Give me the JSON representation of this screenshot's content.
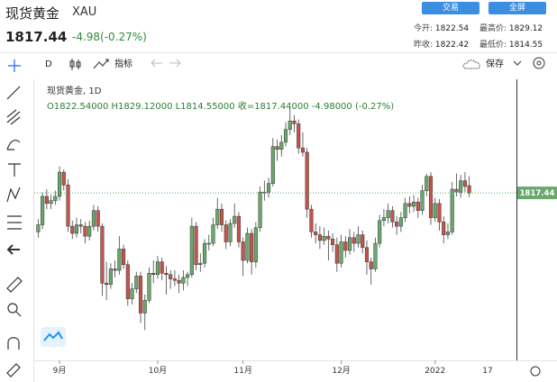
{
  "header": {
    "title": "现货黄金",
    "symbol": "XAU",
    "price": "1817.44",
    "change": "-4.98(-0.27%)",
    "buttons": [
      "交易",
      "全屏"
    ],
    "stats": [
      {
        "label": "今开:",
        "value": "1822.54"
      },
      {
        "label": "最高价:",
        "value": "1829.12"
      },
      {
        "label": "昨收:",
        "value": "1822.42"
      },
      {
        "label": "最低价:",
        "value": "1814.55"
      }
    ]
  },
  "toolbar": {
    "interval": "D",
    "indicators": "指标",
    "save": "保存"
  },
  "chart_data": {
    "type": "candlestick",
    "legend_title": "现货黄金, 1D",
    "legend_ohlc": "O1822.54000  H1829.12000  L1814.55000  收=1817.44000  -4.98000 (-0.27%)",
    "up_color": "#6aa86e",
    "down_color": "#c4554d",
    "last_price": 1817.44,
    "last_price_label": "1817.44",
    "ylim": [
      1701,
      1896
    ],
    "future_label": "17",
    "categories": [
      null,
      null,
      null,
      null,
      null,
      "9月",
      null,
      null,
      null,
      null,
      null,
      null,
      null,
      null,
      null,
      null,
      null,
      null,
      null,
      null,
      null,
      null,
      null,
      null,
      null,
      null,
      null,
      null,
      "10月",
      null,
      null,
      null,
      null,
      null,
      null,
      null,
      null,
      null,
      null,
      null,
      null,
      null,
      null,
      null,
      null,
      null,
      null,
      null,
      "11月",
      null,
      null,
      null,
      null,
      null,
      null,
      null,
      null,
      null,
      null,
      null,
      null,
      null,
      null,
      null,
      null,
      null,
      null,
      null,
      null,
      null,
      null,
      "12月",
      null,
      null,
      null,
      null,
      null,
      null,
      null,
      null,
      null,
      null,
      null,
      null,
      null,
      null,
      null,
      null,
      null,
      null,
      null,
      null,
      null,
      "2022",
      null,
      null,
      null,
      null,
      null,
      null,
      null,
      null
    ],
    "ohlc": [
      [
        1790,
        1799,
        1786,
        1795
      ],
      [
        1795,
        1818,
        1792,
        1815
      ],
      [
        1815,
        1820,
        1806,
        1810
      ],
      [
        1810,
        1816,
        1806,
        1812
      ],
      [
        1812,
        1819,
        1809,
        1815
      ],
      [
        1815,
        1836,
        1812,
        1832
      ],
      [
        1832,
        1834,
        1819,
        1823
      ],
      [
        1823,
        1827,
        1790,
        1794
      ],
      [
        1794,
        1798,
        1785,
        1789
      ],
      [
        1789,
        1800,
        1786,
        1795
      ],
      [
        1795,
        1799,
        1789,
        1794
      ],
      [
        1794,
        1797,
        1782,
        1787
      ],
      [
        1787,
        1798,
        1784,
        1794
      ],
      [
        1794,
        1809,
        1791,
        1805
      ],
      [
        1805,
        1808,
        1790,
        1794
      ],
      [
        1794,
        1796,
        1745,
        1754
      ],
      [
        1754,
        1769,
        1742,
        1753
      ],
      [
        1753,
        1768,
        1750,
        1764
      ],
      [
        1764,
        1770,
        1758,
        1763
      ],
      [
        1763,
        1787,
        1760,
        1778
      ],
      [
        1778,
        1781,
        1764,
        1767
      ],
      [
        1767,
        1770,
        1738,
        1743
      ],
      [
        1743,
        1754,
        1739,
        1750
      ],
      [
        1750,
        1762,
        1747,
        1759
      ],
      [
        1759,
        1762,
        1726,
        1733
      ],
      [
        1733,
        1746,
        1721,
        1742
      ],
      [
        1742,
        1765,
        1740,
        1761
      ],
      [
        1761,
        1770,
        1754,
        1760
      ],
      [
        1760,
        1773,
        1757,
        1769
      ],
      [
        1769,
        1772,
        1756,
        1761
      ],
      [
        1761,
        1766,
        1746,
        1760
      ],
      [
        1760,
        1763,
        1750,
        1757
      ],
      [
        1757,
        1763,
        1752,
        1756
      ],
      [
        1756,
        1760,
        1747,
        1754
      ],
      [
        1754,
        1763,
        1749,
        1758
      ],
      [
        1758,
        1762,
        1752,
        1760
      ],
      [
        1760,
        1800,
        1758,
        1794
      ],
      [
        1794,
        1797,
        1763,
        1767
      ],
      [
        1767,
        1775,
        1762,
        1768
      ],
      [
        1768,
        1785,
        1765,
        1782
      ],
      [
        1782,
        1788,
        1777,
        1782
      ],
      [
        1782,
        1800,
        1780,
        1795
      ],
      [
        1795,
        1814,
        1792,
        1806
      ],
      [
        1806,
        1810,
        1790,
        1795
      ],
      [
        1795,
        1798,
        1778,
        1783
      ],
      [
        1783,
        1799,
        1780,
        1796
      ],
      [
        1796,
        1810,
        1793,
        1801
      ],
      [
        1801,
        1804,
        1779,
        1783
      ],
      [
        1783,
        1786,
        1759,
        1770
      ],
      [
        1770,
        1793,
        1768,
        1789
      ],
      [
        1789,
        1792,
        1760,
        1769
      ],
      [
        1769,
        1797,
        1765,
        1793
      ],
      [
        1793,
        1822,
        1790,
        1818
      ],
      [
        1818,
        1826,
        1812,
        1818
      ],
      [
        1818,
        1828,
        1814,
        1824
      ],
      [
        1824,
        1856,
        1822,
        1850
      ],
      [
        1850,
        1855,
        1840,
        1848
      ],
      [
        1848,
        1858,
        1843,
        1853
      ],
      [
        1853,
        1867,
        1850,
        1862
      ],
      [
        1862,
        1877,
        1858,
        1868
      ],
      [
        1868,
        1872,
        1860,
        1866
      ],
      [
        1866,
        1869,
        1845,
        1849
      ],
      [
        1849,
        1860,
        1843,
        1846
      ],
      [
        1846,
        1849,
        1800,
        1806
      ],
      [
        1806,
        1809,
        1786,
        1790
      ],
      [
        1790,
        1796,
        1782,
        1788
      ],
      [
        1788,
        1794,
        1778,
        1784
      ],
      [
        1784,
        1793,
        1781,
        1787
      ],
      [
        1787,
        1791,
        1770,
        1785
      ],
      [
        1785,
        1789,
        1776,
        1781
      ],
      [
        1781,
        1786,
        1762,
        1768
      ],
      [
        1768,
        1788,
        1765,
        1783
      ],
      [
        1783,
        1787,
        1772,
        1777
      ],
      [
        1777,
        1792,
        1774,
        1786
      ],
      [
        1786,
        1790,
        1776,
        1782
      ],
      [
        1782,
        1794,
        1779,
        1788
      ],
      [
        1788,
        1791,
        1775,
        1779
      ],
      [
        1779,
        1784,
        1760,
        1769
      ],
      [
        1769,
        1772,
        1753,
        1764
      ],
      [
        1764,
        1786,
        1762,
        1782
      ],
      [
        1782,
        1802,
        1779,
        1798
      ],
      [
        1798,
        1806,
        1794,
        1800
      ],
      [
        1800,
        1810,
        1796,
        1805
      ],
      [
        1805,
        1808,
        1793,
        1797
      ],
      [
        1797,
        1801,
        1788,
        1794
      ],
      [
        1794,
        1804,
        1790,
        1800
      ],
      [
        1800,
        1814,
        1797,
        1810
      ],
      [
        1810,
        1815,
        1803,
        1808
      ],
      [
        1808,
        1816,
        1804,
        1811
      ],
      [
        1811,
        1814,
        1800,
        1805
      ],
      [
        1805,
        1823,
        1802,
        1819
      ],
      [
        1819,
        1831,
        1815,
        1829
      ],
      [
        1829,
        1832,
        1795,
        1800
      ],
      [
        1800,
        1814,
        1797,
        1810
      ],
      [
        1810,
        1813,
        1791,
        1797
      ],
      [
        1797,
        1801,
        1782,
        1788
      ],
      [
        1788,
        1796,
        1785,
        1790
      ],
      [
        1790,
        1825,
        1788,
        1820
      ],
      [
        1820,
        1831,
        1815,
        1818
      ],
      [
        1818,
        1830,
        1814,
        1826
      ],
      [
        1826,
        1832,
        1818,
        1822
      ],
      [
        1822.54,
        1829.12,
        1814.55,
        1817.44
      ]
    ]
  }
}
